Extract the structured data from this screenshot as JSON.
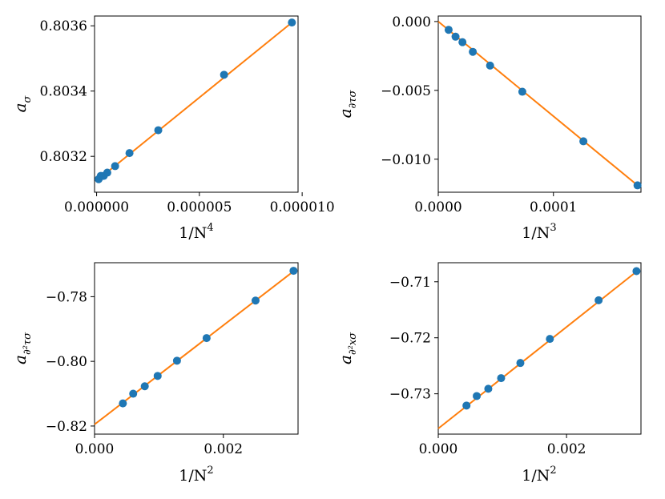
{
  "chart_data": [
    {
      "type": "scatter",
      "id": "a-sigma",
      "xlabel": "1/N",
      "xlabel_sup": "4",
      "ylabel": "a",
      "ylabel_sub": "σ",
      "xlim": [
        -1e-07,
        9.8e-06
      ],
      "ylim": [
        0.80309,
        0.80363
      ],
      "xticks": [
        0.0,
        5e-06,
        1e-05
      ],
      "xtick_labels": [
        "0.000000",
        "0.000005",
        "0.000010"
      ],
      "yticks": [
        0.8032,
        0.8034,
        0.8036
      ],
      "ytick_labels": [
        "0.8032",
        "0.8034",
        "0.8036"
      ],
      "points": {
        "x": [
          1e-07,
          2e-07,
          3.5e-07,
          5.2e-07,
          9e-07,
          1.6e-06,
          3e-06,
          6.2e-06,
          9.5e-06
        ],
        "y": [
          0.80313,
          0.80314,
          0.80314,
          0.80315,
          0.80317,
          0.80321,
          0.80328,
          0.80345,
          0.80361
        ]
      },
      "fit": {
        "x": [
          0.0,
          9.5e-06
        ],
        "y": [
          0.803125,
          0.80361
        ]
      },
      "colors": {
        "points": "#1f77b4",
        "fit": "#ff7f0e"
      }
    },
    {
      "type": "scatter",
      "id": "a-dtau-sigma",
      "xlabel": "1/N",
      "xlabel_sup": "3",
      "ylabel": "a",
      "ylabel_sub": "∂τσ",
      "xlim": [
        0.0,
        0.000176
      ],
      "ylim": [
        -0.0124,
        0.0004
      ],
      "xticks": [
        0.0,
        0.0001
      ],
      "xtick_labels": [
        "0.0000",
        "0.0001"
      ],
      "yticks": [
        0.0,
        -0.005,
        -0.01
      ],
      "ytick_labels": [
        "0.000",
        "−0.005",
        "−0.010"
      ],
      "points": {
        "x": [
          9e-06,
          1.5e-05,
          2.1e-05,
          3e-05,
          4.5e-05,
          7.3e-05,
          0.000126,
          0.000173
        ],
        "y": [
          -0.0006,
          -0.0011,
          -0.0015,
          -0.0022,
          -0.0032,
          -0.0051,
          -0.0087,
          -0.0119
        ]
      },
      "fit": {
        "x": [
          0.0,
          0.000173
        ],
        "y": [
          0.0,
          -0.0119
        ]
      },
      "colors": {
        "points": "#1f77b4",
        "fit": "#ff7f0e"
      }
    },
    {
      "type": "scatter",
      "id": "a-dtau2-sigma",
      "xlabel": "1/N",
      "xlabel_sup": "2",
      "ylabel": "a",
      "ylabel_sub": "∂²τσ",
      "xlim": [
        0.0,
        0.00316
      ],
      "ylim": [
        -0.8225,
        -0.7695
      ],
      "xticks": [
        0.0,
        0.002
      ],
      "xtick_labels": [
        "0.000",
        "0.002"
      ],
      "yticks": [
        -0.78,
        -0.8,
        -0.82
      ],
      "ytick_labels": [
        "−0.78",
        "−0.80",
        "−0.82"
      ],
      "points": {
        "x": [
          0.00044,
          0.0006,
          0.00078,
          0.00098,
          0.00128,
          0.00174,
          0.0025,
          0.00309
        ],
        "y": [
          -0.813,
          -0.81,
          -0.8077,
          -0.8045,
          -0.7998,
          -0.7928,
          -0.7812,
          -0.772
        ]
      },
      "fit": {
        "x": [
          0.0,
          0.0031
        ],
        "y": [
          -0.8195,
          -0.772
        ]
      },
      "colors": {
        "points": "#1f77b4",
        "fit": "#ff7f0e"
      }
    },
    {
      "type": "scatter",
      "id": "a-dx2-sigma",
      "xlabel": "1/N",
      "xlabel_sup": "2",
      "ylabel": "a",
      "ylabel_sub": "∂²xσ",
      "xlim": [
        0.0,
        0.00316
      ],
      "ylim": [
        -0.7372,
        -0.7066
      ],
      "xticks": [
        0.0,
        0.002
      ],
      "xtick_labels": [
        "0.000",
        "0.002"
      ],
      "yticks": [
        -0.71,
        -0.72,
        -0.73
      ],
      "ytick_labels": [
        "−0.71",
        "−0.72",
        "−0.73"
      ],
      "points": {
        "x": [
          0.00044,
          0.0006,
          0.00078,
          0.00098,
          0.00128,
          0.00174,
          0.0025,
          0.00309
        ],
        "y": [
          -0.7321,
          -0.7304,
          -0.7291,
          -0.7272,
          -0.7245,
          -0.7202,
          -0.7133,
          -0.7081
        ]
      },
      "fit": {
        "x": [
          0.0,
          0.0031
        ],
        "y": [
          -0.7362,
          -0.7081
        ]
      },
      "colors": {
        "points": "#1f77b4",
        "fit": "#ff7f0e"
      }
    }
  ]
}
